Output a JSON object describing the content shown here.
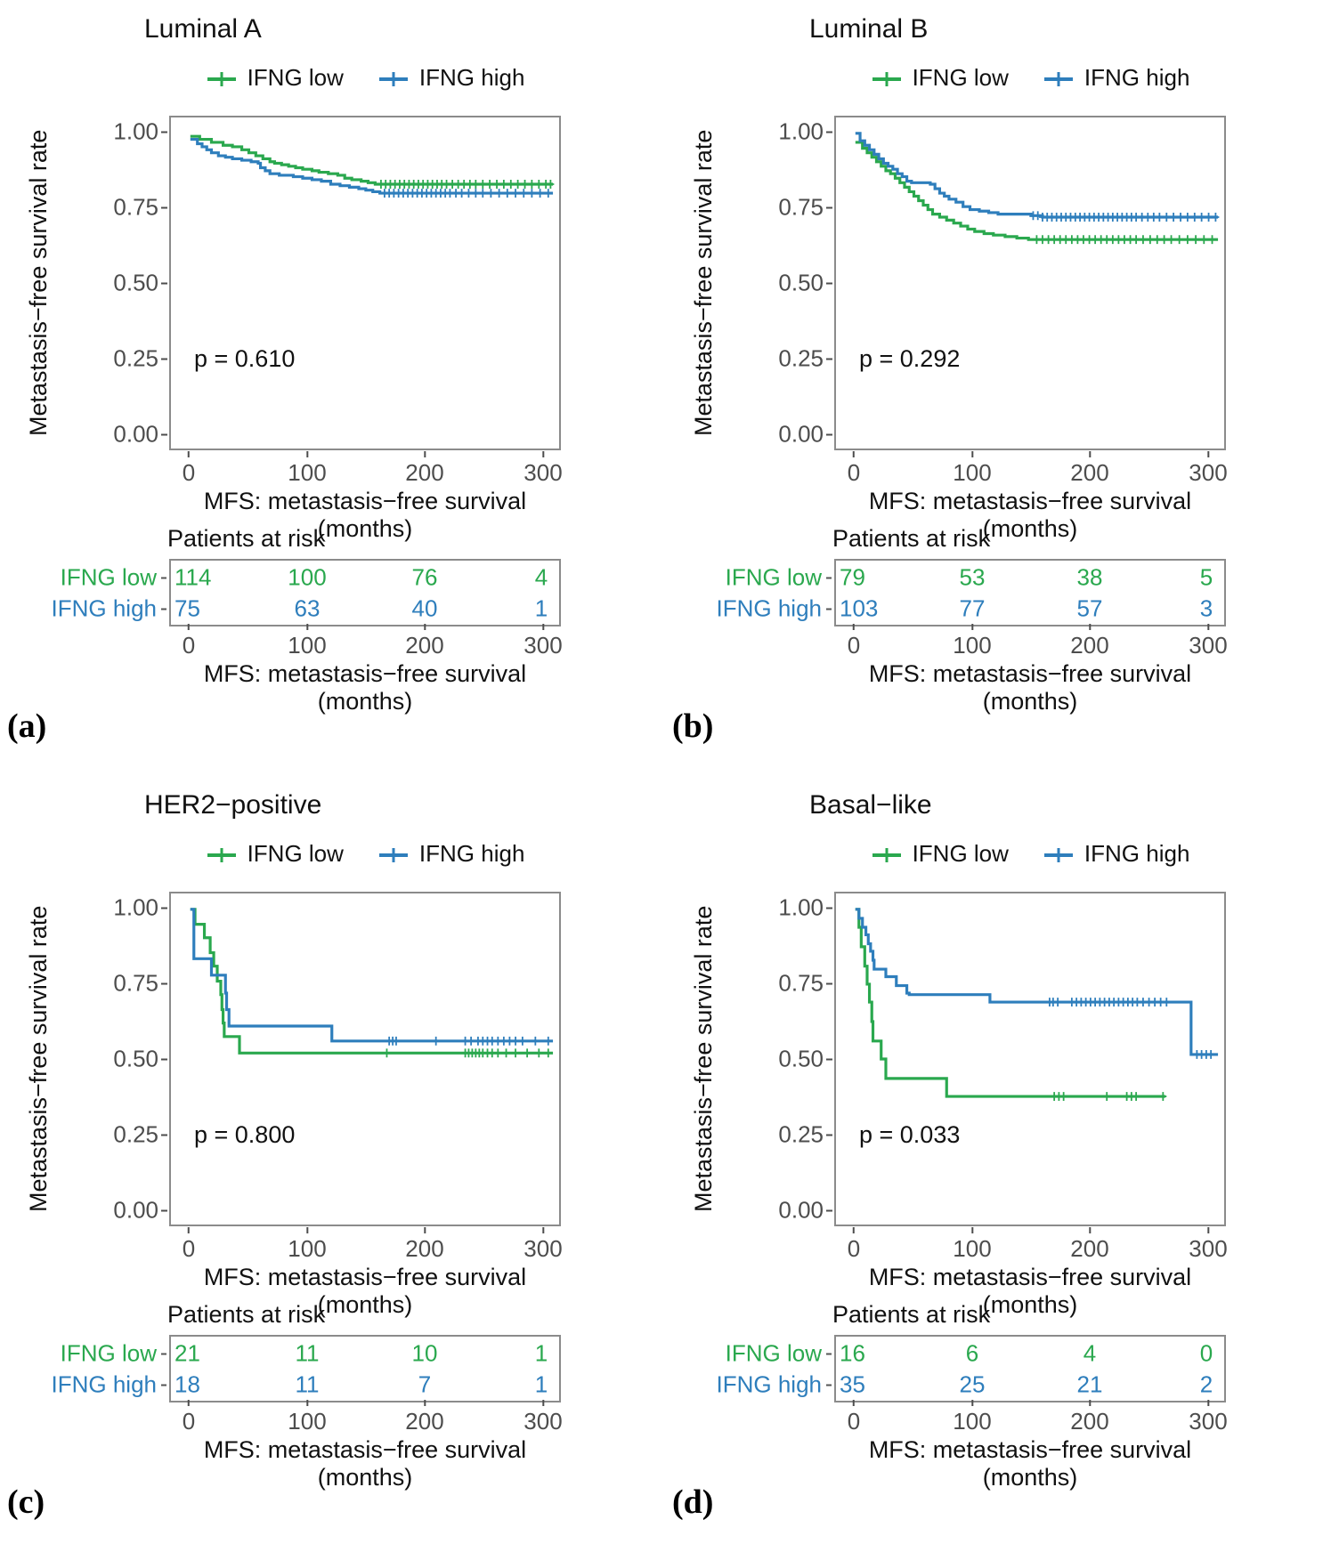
{
  "figure": {
    "y_axis_label": "Metastasis−free survival rate",
    "x_axis_label": "MFS: metastasis−free survival (months)",
    "risk_header": "Patients at risk",
    "legend_labels": [
      "IFNG low",
      "IFNG high"
    ],
    "x_ticks": [
      "0",
      "100",
      "200",
      "300"
    ],
    "y_ticks": [
      "1.00",
      "0.75",
      "0.50",
      "0.25",
      "0.00"
    ],
    "colors": {
      "ifng_low": "#2aa84e",
      "ifng_high": "#2e7ebc",
      "axis_text": "#4d4d4d",
      "border": "#8b8b8b"
    }
  },
  "panels": [
    {
      "letter": "(a)",
      "p_label": "p = 0.610"
    },
    {
      "letter": "(b)",
      "p_label": "p = 0.292"
    },
    {
      "letter": "(c)",
      "p_label": "p = 0.800"
    },
    {
      "letter": "(d)",
      "p_label": "p = 0.033"
    }
  ],
  "chart_data": [
    {
      "type": "line",
      "subtype": "kaplan-meier-step",
      "title": "Luminal A",
      "xlabel": "MFS: metastasis−free survival (months)",
      "ylabel": "Metastasis−free survival rate",
      "xlim": [
        0,
        310
      ],
      "ylim": [
        0,
        1.05
      ],
      "x_ticks": [
        0,
        100,
        200,
        300
      ],
      "y_ticks": [
        0,
        0.25,
        0.5,
        0.75,
        1
      ],
      "p_value": 0.61,
      "series": [
        {
          "name": "IFNG low",
          "color": "#2aa84e",
          "step_points": [
            [
              0,
              0.99
            ],
            [
              8,
              0.98
            ],
            [
              18,
              0.97
            ],
            [
              28,
              0.96
            ],
            [
              36,
              0.955
            ],
            [
              44,
              0.945
            ],
            [
              50,
              0.935
            ],
            [
              56,
              0.925
            ],
            [
              62,
              0.915
            ],
            [
              68,
              0.905
            ],
            [
              72,
              0.9
            ],
            [
              78,
              0.895
            ],
            [
              84,
              0.89
            ],
            [
              90,
              0.885
            ],
            [
              96,
              0.88
            ],
            [
              104,
              0.875
            ],
            [
              110,
              0.87
            ],
            [
              118,
              0.865
            ],
            [
              126,
              0.86
            ],
            [
              132,
              0.85
            ],
            [
              138,
              0.845
            ],
            [
              146,
              0.84
            ],
            [
              152,
              0.835
            ],
            [
              158,
              0.83
            ],
            [
              310,
              0.83
            ]
          ],
          "censor_x": [
            163,
            167,
            171,
            175,
            179,
            183,
            187,
            191,
            195,
            199,
            203,
            207,
            211,
            215,
            219,
            224,
            229,
            234,
            239,
            244,
            250,
            256,
            262,
            268,
            274,
            280,
            286,
            292,
            298,
            304,
            308
          ],
          "at_risk": [
            114,
            100,
            76,
            4
          ]
        },
        {
          "name": "IFNG high",
          "color": "#2e7ebc",
          "step_points": [
            [
              0,
              0.98
            ],
            [
              6,
              0.965
            ],
            [
              10,
              0.955
            ],
            [
              14,
              0.945
            ],
            [
              18,
              0.935
            ],
            [
              24,
              0.925
            ],
            [
              30,
              0.92
            ],
            [
              36,
              0.915
            ],
            [
              44,
              0.91
            ],
            [
              52,
              0.905
            ],
            [
              58,
              0.9
            ],
            [
              60,
              0.885
            ],
            [
              64,
              0.875
            ],
            [
              68,
              0.865
            ],
            [
              76,
              0.86
            ],
            [
              88,
              0.855
            ],
            [
              96,
              0.85
            ],
            [
              104,
              0.845
            ],
            [
              112,
              0.84
            ],
            [
              120,
              0.83
            ],
            [
              128,
              0.825
            ],
            [
              136,
              0.82
            ],
            [
              144,
              0.815
            ],
            [
              150,
              0.81
            ],
            [
              156,
              0.805
            ],
            [
              162,
              0.8
            ],
            [
              310,
              0.8
            ]
          ],
          "censor_x": [
            166,
            170,
            174,
            178,
            182,
            186,
            190,
            194,
            198,
            202,
            206,
            210,
            214,
            218,
            222,
            227,
            232,
            238,
            244,
            250,
            257,
            264,
            271,
            278,
            285,
            292,
            299,
            306
          ],
          "at_risk": [
            75,
            63,
            40,
            1
          ]
        }
      ]
    },
    {
      "type": "line",
      "subtype": "kaplan-meier-step",
      "title": "Luminal B",
      "xlabel": "MFS: metastasis−free survival (months)",
      "ylabel": "Metastasis−free survival rate",
      "xlim": [
        0,
        310
      ],
      "ylim": [
        0,
        1.05
      ],
      "x_ticks": [
        0,
        100,
        200,
        300
      ],
      "y_ticks": [
        0,
        0.25,
        0.5,
        0.75,
        1
      ],
      "p_value": 0.292,
      "series": [
        {
          "name": "IFNG low",
          "color": "#2aa84e",
          "step_points": [
            [
              0,
              0.97
            ],
            [
              6,
              0.95
            ],
            [
              10,
              0.935
            ],
            [
              14,
              0.92
            ],
            [
              18,
              0.905
            ],
            [
              22,
              0.89
            ],
            [
              26,
              0.875
            ],
            [
              30,
              0.865
            ],
            [
              34,
              0.85
            ],
            [
              38,
              0.835
            ],
            [
              42,
              0.82
            ],
            [
              46,
              0.805
            ],
            [
              50,
              0.79
            ],
            [
              54,
              0.775
            ],
            [
              58,
              0.76
            ],
            [
              62,
              0.745
            ],
            [
              66,
              0.73
            ],
            [
              72,
              0.72
            ],
            [
              78,
              0.71
            ],
            [
              84,
              0.7
            ],
            [
              90,
              0.69
            ],
            [
              96,
              0.68
            ],
            [
              102,
              0.672
            ],
            [
              110,
              0.665
            ],
            [
              118,
              0.66
            ],
            [
              128,
              0.655
            ],
            [
              138,
              0.65
            ],
            [
              148,
              0.645
            ],
            [
              310,
              0.645
            ]
          ],
          "censor_x": [
            155,
            160,
            165,
            170,
            175,
            180,
            185,
            190,
            195,
            200,
            205,
            210,
            215,
            220,
            225,
            230,
            235,
            240,
            246,
            252,
            258,
            264,
            270,
            277,
            284,
            291,
            298,
            305
          ],
          "at_risk": [
            79,
            53,
            38,
            5
          ]
        },
        {
          "name": "IFNG high",
          "color": "#2e7ebc",
          "step_points": [
            [
              0,
              1.0
            ],
            [
              4,
              0.975
            ],
            [
              8,
              0.96
            ],
            [
              12,
              0.945
            ],
            [
              16,
              0.93
            ],
            [
              20,
              0.915
            ],
            [
              24,
              0.9
            ],
            [
              28,
              0.89
            ],
            [
              32,
              0.88
            ],
            [
              36,
              0.865
            ],
            [
              40,
              0.855
            ],
            [
              44,
              0.84
            ],
            [
              48,
              0.835
            ],
            [
              64,
              0.83
            ],
            [
              68,
              0.815
            ],
            [
              72,
              0.8
            ],
            [
              76,
              0.79
            ],
            [
              80,
              0.78
            ],
            [
              86,
              0.77
            ],
            [
              92,
              0.755
            ],
            [
              98,
              0.745
            ],
            [
              106,
              0.74
            ],
            [
              114,
              0.735
            ],
            [
              122,
              0.73
            ],
            [
              150,
              0.725
            ],
            [
              160,
              0.72
            ],
            [
              310,
              0.72
            ]
          ],
          "censor_x": [
            152,
            156,
            160,
            164,
            168,
            172,
            176,
            180,
            184,
            188,
            192,
            196,
            200,
            204,
            208,
            212,
            216,
            220,
            224,
            228,
            232,
            236,
            240,
            245,
            250,
            255,
            260,
            266,
            272,
            278,
            284,
            290,
            296,
            302,
            308
          ],
          "at_risk": [
            103,
            77,
            57,
            3
          ]
        }
      ]
    },
    {
      "type": "line",
      "subtype": "kaplan-meier-step",
      "title": "HER2−positive",
      "xlabel": "MFS: metastasis−free survival (months)",
      "ylabel": "Metastasis−free survival rate",
      "xlim": [
        0,
        310
      ],
      "ylim": [
        0,
        1.05
      ],
      "x_ticks": [
        0,
        100,
        200,
        300
      ],
      "y_ticks": [
        0,
        0.25,
        0.5,
        0.75,
        1
      ],
      "p_value": 0.8,
      "series": [
        {
          "name": "IFNG low",
          "color": "#2aa84e",
          "step_points": [
            [
              0,
              1.0
            ],
            [
              4,
              0.95
            ],
            [
              12,
              0.905
            ],
            [
              17,
              0.855
            ],
            [
              20,
              0.81
            ],
            [
              23,
              0.76
            ],
            [
              26,
              0.715
            ],
            [
              27,
              0.665
            ],
            [
              28,
              0.62
            ],
            [
              29,
              0.575
            ],
            [
              42,
              0.52
            ],
            [
              310,
              0.52
            ]
          ],
          "censor_x": [
            168,
            235,
            238,
            241,
            244,
            247,
            250,
            254,
            258,
            263,
            270,
            278,
            288,
            298,
            306
          ],
          "at_risk": [
            21,
            11,
            10,
            1
          ]
        },
        {
          "name": "IFNG high",
          "color": "#2e7ebc",
          "step_points": [
            [
              0,
              1.0
            ],
            [
              3,
              0.835
            ],
            [
              18,
              0.78
            ],
            [
              30,
              0.72
            ],
            [
              31,
              0.665
            ],
            [
              33,
              0.61
            ],
            [
              121,
              0.56
            ],
            [
              310,
              0.56
            ]
          ],
          "censor_x": [
            170,
            173,
            176,
            210,
            235,
            240,
            246,
            250,
            254,
            258,
            263,
            268,
            273,
            278,
            284,
            295,
            306
          ],
          "at_risk": [
            18,
            11,
            7,
            1
          ]
        }
      ]
    },
    {
      "type": "line",
      "subtype": "kaplan-meier-step",
      "title": "Basal−like",
      "xlabel": "MFS: metastasis−free survival (months)",
      "ylabel": "Metastasis−free survival rate",
      "xlim": [
        0,
        310
      ],
      "ylim": [
        0,
        1.05
      ],
      "x_ticks": [
        0,
        100,
        200,
        300
      ],
      "y_ticks": [
        0,
        0.25,
        0.5,
        0.75,
        1
      ],
      "p_value": 0.033,
      "series": [
        {
          "name": "IFNG low",
          "color": "#2aa84e",
          "step_points": [
            [
              0,
              1.0
            ],
            [
              3,
              0.94
            ],
            [
              5,
              0.875
            ],
            [
              8,
              0.81
            ],
            [
              10,
              0.75
            ],
            [
              12,
              0.69
            ],
            [
              14,
              0.625
            ],
            [
              15,
              0.56
            ],
            [
              22,
              0.5
            ],
            [
              26,
              0.435
            ],
            [
              78,
              0.375
            ],
            [
              265,
              0.375
            ]
          ],
          "censor_x": [
            170,
            174,
            178,
            215,
            232,
            236,
            240,
            263
          ],
          "at_risk": [
            16,
            6,
            4,
            0
          ]
        },
        {
          "name": "IFNG high",
          "color": "#2e7ebc",
          "step_points": [
            [
              0,
              1.0
            ],
            [
              3,
              0.97
            ],
            [
              6,
              0.94
            ],
            [
              9,
              0.915
            ],
            [
              11,
              0.885
            ],
            [
              13,
              0.86
            ],
            [
              15,
              0.83
            ],
            [
              16,
              0.8
            ],
            [
              26,
              0.775
            ],
            [
              35,
              0.745
            ],
            [
              44,
              0.72
            ],
            [
              46,
              0.715
            ],
            [
              115,
              0.69
            ],
            [
              287,
              0.515
            ],
            [
              310,
              0.515
            ]
          ],
          "censor_x": [
            166,
            169,
            173,
            185,
            189,
            193,
            197,
            201,
            205,
            209,
            213,
            217,
            221,
            225,
            229,
            233,
            237,
            241,
            246,
            251,
            256,
            261,
            266,
            292,
            296,
            300,
            304
          ],
          "at_risk": [
            35,
            25,
            21,
            2
          ]
        }
      ]
    }
  ]
}
